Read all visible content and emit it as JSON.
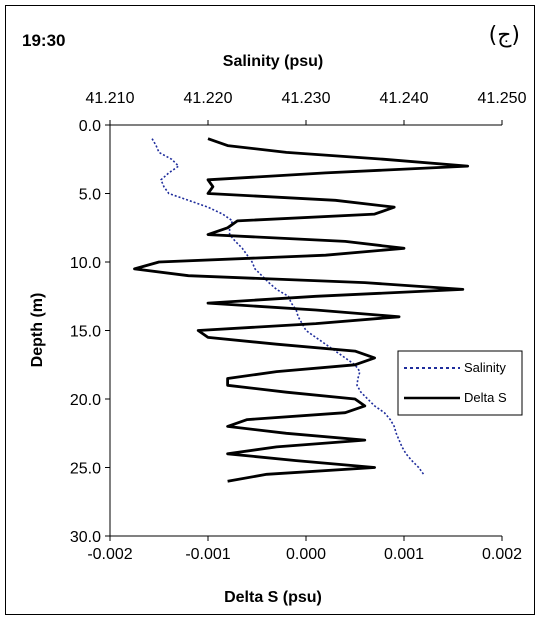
{
  "chart_data": {
    "type": "line",
    "time_label": "19:30",
    "panel_label": "(ج)",
    "top_axis": {
      "label": "Salinity (psu)",
      "range": [
        41.21,
        41.25
      ],
      "ticks": [
        "41.210",
        "41.220",
        "41.230",
        "41.240",
        "41.250"
      ]
    },
    "bottom_axis": {
      "label": "Delta S (psu)",
      "range": [
        -0.002,
        0.002
      ],
      "ticks": [
        "-0.002",
        "-0.001",
        "0.000",
        "0.001",
        "0.002"
      ]
    },
    "y_axis": {
      "label": "Depth (m)",
      "range": [
        0,
        30
      ],
      "inverted": true,
      "ticks": [
        "0.0",
        "5.0",
        "10.0",
        "15.0",
        "20.0",
        "25.0",
        "30.0"
      ]
    },
    "legend": {
      "position": "right",
      "entries": [
        "Salinity",
        "Delta S"
      ]
    },
    "series": [
      {
        "name": "Salinity",
        "axis": "top",
        "style": "dotted",
        "color": "#1f2d9c",
        "depth": [
          1.0,
          1.5,
          2.0,
          2.5,
          3.0,
          3.5,
          4.0,
          4.5,
          5.0,
          5.5,
          6.0,
          6.5,
          7.0,
          7.5,
          8.0,
          8.5,
          9.0,
          9.5,
          10.0,
          10.5,
          11.0,
          11.5,
          12.0,
          12.5,
          13.0,
          13.5,
          14.0,
          14.5,
          15.0,
          15.5,
          16.0,
          16.5,
          17.0,
          17.5,
          18.0,
          18.5,
          19.0,
          19.5,
          20.0,
          20.5,
          21.0,
          21.5,
          22.0,
          22.5,
          23.0,
          23.5,
          24.0,
          24.5,
          25.0,
          25.5
        ],
        "values": [
          41.2143,
          41.2147,
          41.215,
          41.2163,
          41.217,
          41.216,
          41.2152,
          41.2155,
          41.216,
          41.218,
          41.22,
          41.2215,
          41.2225,
          41.2222,
          41.2222,
          41.2228,
          41.2235,
          41.224,
          41.2245,
          41.2248,
          41.2255,
          41.2262,
          41.227,
          41.2282,
          41.2285,
          41.229,
          41.2292,
          41.2296,
          41.23,
          41.231,
          41.232,
          41.233,
          41.234,
          41.235,
          41.2355,
          41.2353,
          41.2352,
          41.2356,
          41.2363,
          41.237,
          41.238,
          41.2386,
          41.239,
          41.2392,
          41.2395,
          41.2398,
          41.2402,
          41.2408,
          41.2415,
          41.242
        ]
      },
      {
        "name": "Delta S",
        "axis": "bottom",
        "style": "solid",
        "color": "#000000",
        "depth": [
          1.0,
          1.5,
          2.0,
          2.5,
          3.0,
          3.5,
          4.0,
          4.5,
          5.0,
          5.5,
          6.0,
          6.5,
          7.0,
          7.5,
          8.0,
          8.5,
          9.0,
          9.5,
          10.0,
          10.5,
          11.0,
          11.5,
          12.0,
          12.5,
          13.0,
          13.5,
          14.0,
          14.5,
          15.0,
          15.5,
          16.0,
          16.5,
          17.0,
          17.5,
          18.0,
          18.5,
          19.0,
          19.5,
          20.0,
          20.5,
          21.0,
          21.5,
          22.0,
          22.5,
          23.0,
          23.5,
          24.0,
          24.5,
          25.0,
          25.5,
          26.0
        ],
        "values": [
          -0.001,
          -0.0008,
          -0.0002,
          0.0008,
          0.00165,
          0.0002,
          -0.001,
          -0.00095,
          -0.001,
          0.0003,
          0.0009,
          0.0007,
          -0.0007,
          -0.0008,
          -0.001,
          0.0004,
          0.001,
          0.0002,
          -0.0015,
          -0.00175,
          -0.0012,
          0.0006,
          0.0016,
          0.0001,
          -0.001,
          0.0001,
          0.00095,
          0.0001,
          -0.0011,
          -0.001,
          -0.0003,
          0.0005,
          0.0007,
          0.0005,
          -0.0003,
          -0.0008,
          -0.0008,
          -0.0002,
          0.0005,
          0.0006,
          0.0004,
          -0.0006,
          -0.0008,
          -0.0002,
          0.0006,
          -0.0003,
          -0.0008,
          -0.0001,
          0.0007,
          -0.0004,
          -0.0008
        ]
      }
    ]
  }
}
